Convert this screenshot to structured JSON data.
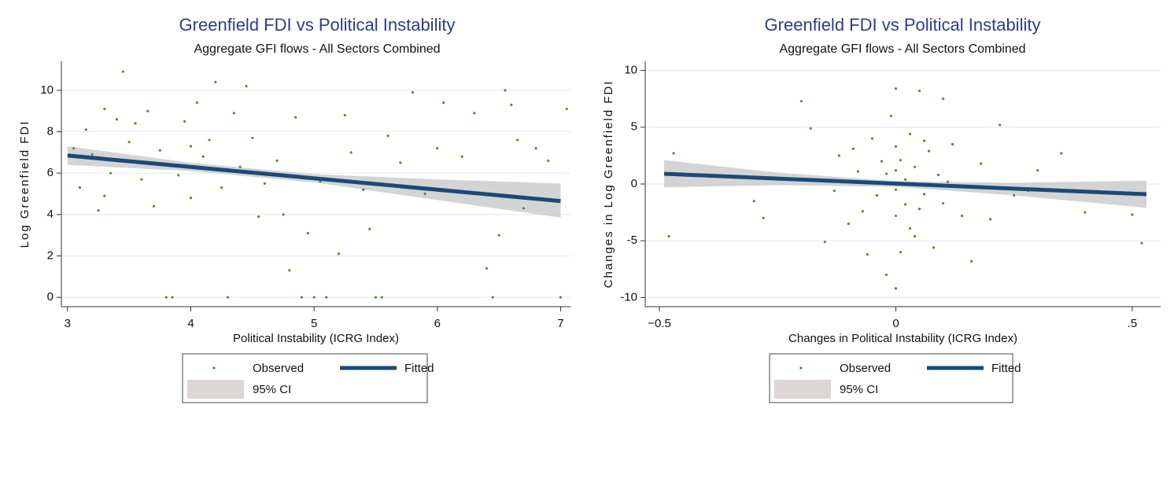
{
  "chart_data": [
    {
      "type": "scatter",
      "title": "Greenfield FDI vs Political Instability",
      "subtitle": "Aggregate GFI flows - All Sectors Combined",
      "xlabel": "Political Instability (ICRG Index)",
      "ylabel": "Log Greenfield FDI",
      "xlim": [
        2.95,
        7.08
      ],
      "ylim": [
        -0.45,
        11.4
      ],
      "xticks": [
        3,
        4,
        5,
        6,
        7
      ],
      "yticks": [
        0,
        2,
        4,
        6,
        8,
        10
      ],
      "grid": true,
      "series": [
        {
          "name": "Observed",
          "color": "#5b8a2b",
          "x": [
            3.05,
            3.1,
            3.15,
            3.2,
            3.25,
            3.3,
            3.35,
            3.4,
            3.45,
            3.5,
            3.55,
            3.6,
            3.65,
            3.7,
            3.75,
            3.8,
            3.85,
            3.9,
            3.95,
            4.0,
            4.05,
            4.1,
            4.15,
            4.2,
            4.25,
            4.3,
            4.35,
            4.4,
            4.45,
            4.5,
            4.55,
            4.6,
            4.7,
            4.75,
            4.8,
            4.85,
            4.9,
            4.95,
            5.0,
            5.05,
            5.1,
            5.2,
            5.25,
            5.3,
            5.4,
            5.45,
            5.5,
            5.55,
            5.6,
            5.7,
            5.8,
            5.9,
            6.0,
            6.05,
            6.2,
            6.3,
            6.4,
            6.45,
            6.5,
            6.55,
            6.6,
            6.65,
            6.7,
            6.8,
            6.9,
            7.0,
            7.05,
            3.3,
            3.6,
            4.0
          ],
          "y": [
            7.2,
            5.3,
            8.1,
            6.9,
            4.2,
            9.1,
            6.0,
            8.6,
            10.9,
            7.5,
            8.4,
            5.7,
            9.0,
            4.4,
            7.1,
            0,
            0,
            5.9,
            8.5,
            4.8,
            9.4,
            6.8,
            7.6,
            10.4,
            5.3,
            0,
            8.9,
            6.3,
            10.2,
            7.7,
            3.9,
            5.5,
            6.6,
            4.0,
            1.3,
            8.7,
            0,
            3.1,
            0,
            5.6,
            0,
            2.1,
            8.8,
            7.0,
            5.2,
            3.3,
            0,
            0,
            7.8,
            6.5,
            9.9,
            5.0,
            7.2,
            9.4,
            6.8,
            8.9,
            1.4,
            0,
            3.0,
            10.0,
            9.3,
            7.6,
            4.3,
            7.2,
            6.6,
            0,
            9.1,
            4.9,
            6.5,
            7.3
          ]
        },
        {
          "name": "Fitted",
          "color": "#1b4a7a",
          "x": [
            3,
            7
          ],
          "y": [
            6.85,
            4.65
          ]
        }
      ],
      "ci": {
        "name": "95% CI",
        "color": "#c9c9c9",
        "legend_color": "#ddd6d6",
        "x": [
          3,
          4,
          5,
          6,
          7
        ],
        "upper": [
          7.3,
          6.5,
          5.95,
          5.7,
          5.5
        ],
        "lower": [
          6.4,
          6.1,
          5.55,
          4.7,
          3.85
        ]
      }
    },
    {
      "type": "scatter",
      "title": "Greenfield FDI vs Political Instability",
      "subtitle": "Aggregate GFI flows - All Sectors Combined",
      "xlabel": "Changes in Political Instability (ICRG Index)",
      "ylabel": "Changes in Log Greenfield FDI",
      "xlim": [
        -0.53,
        0.56
      ],
      "ylim": [
        -10.8,
        10.8
      ],
      "xticks": [
        {
          "value": -0.5,
          "label": "−0.5"
        },
        0,
        {
          "value": 0.5,
          "label": ".5"
        }
      ],
      "yticks": [
        -10,
        -5,
        0,
        5,
        10
      ],
      "grid": true,
      "series": [
        {
          "name": "Observed",
          "color": "#5b8a2b",
          "x": [
            -0.48,
            -0.47,
            -0.3,
            -0.28,
            -0.2,
            -0.18,
            -0.15,
            -0.12,
            -0.1,
            -0.08,
            -0.06,
            -0.05,
            -0.04,
            -0.03,
            -0.02,
            -0.01,
            0,
            0,
            0,
            0,
            0,
            0,
            0.01,
            0.01,
            0.02,
            0.02,
            0.03,
            0.03,
            0.04,
            0.05,
            0.05,
            0.06,
            0.07,
            0.08,
            0.09,
            0.1,
            0.1,
            0.12,
            0.14,
            0.16,
            0.18,
            0.2,
            0.22,
            0.25,
            0.3,
            0.35,
            0.4,
            0.5,
            0.52,
            -0.07,
            -0.09,
            0.04,
            -0.02,
            0.06,
            -0.13,
            0.11,
            -0.25,
            0.28
          ],
          "y": [
            -4.6,
            2.7,
            -1.5,
            -3.0,
            7.3,
            4.9,
            -5.1,
            2.5,
            -3.5,
            1.1,
            -6.2,
            4.0,
            -1.0,
            2.0,
            -8.0,
            6.0,
            8.4,
            -9.2,
            3.3,
            -2.8,
            1.2,
            -0.5,
            -6.0,
            2.1,
            0.4,
            -1.8,
            4.4,
            -3.9,
            1.5,
            -2.2,
            8.2,
            -0.9,
            2.9,
            -5.6,
            0.8,
            7.5,
            -1.7,
            3.5,
            -2.8,
            -6.8,
            1.8,
            -3.1,
            5.2,
            -1.0,
            1.2,
            2.7,
            -2.5,
            -2.7,
            -5.2,
            -2.4,
            3.1,
            -4.6,
            0.9,
            3.8,
            -0.6,
            0.2,
            0.4,
            -0.6
          ]
        },
        {
          "name": "Fitted",
          "color": "#1b4a7a",
          "x": [
            -0.49,
            0.53
          ],
          "y": [
            0.9,
            -0.9
          ]
        }
      ],
      "ci": {
        "name": "95% CI",
        "color": "#c9c9c9",
        "legend_color": "#ddd6d6",
        "x": [
          -0.49,
          -0.25,
          0,
          0.25,
          0.53
        ],
        "upper": [
          2.1,
          1.0,
          0.25,
          0.1,
          0.3
        ],
        "lower": [
          -0.3,
          -0.1,
          -0.25,
          -1.0,
          -2.1
        ]
      }
    }
  ]
}
